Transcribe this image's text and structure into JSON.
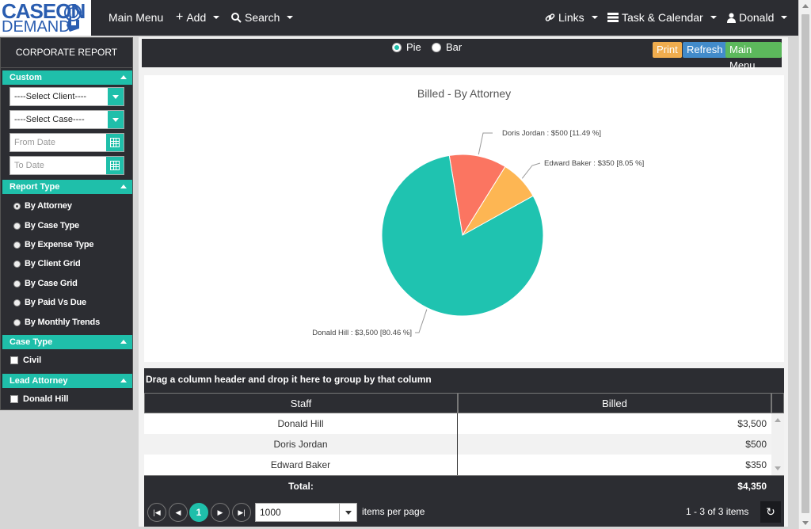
{
  "logo": {
    "line1": "CASEON",
    "line2": "DEMAND"
  },
  "nav": {
    "main_menu": "Main Menu",
    "add": "Add",
    "search": "Search",
    "links": "Links",
    "task_calendar": "Task & Calendar",
    "user": "Donald"
  },
  "sidebar": {
    "title": "CORPORATE REPORT",
    "custom": {
      "header": "Custom",
      "client_select": "----Select Client----",
      "case_select": "----Select Case----",
      "from_date_placeholder": "From Date",
      "to_date_placeholder": "To Date"
    },
    "report_type": {
      "header": "Report Type",
      "options": [
        {
          "label": "By Attorney",
          "selected": true
        },
        {
          "label": "By Case Type",
          "selected": false
        },
        {
          "label": "By Expense Type",
          "selected": false
        },
        {
          "label": "By Client Grid",
          "selected": false
        },
        {
          "label": "By Case Grid",
          "selected": false
        },
        {
          "label": "By Paid Vs Due",
          "selected": false
        },
        {
          "label": "By Monthly Trends",
          "selected": false
        }
      ]
    },
    "case_type": {
      "header": "Case Type",
      "items": [
        "Civil"
      ]
    },
    "lead_attorney": {
      "header": "Lead Attorney",
      "items": [
        "Donald Hill"
      ]
    }
  },
  "toolbar": {
    "pie_label": "Pie",
    "bar_label": "Bar",
    "selected_view": "Pie",
    "print": "Print",
    "refresh": "Refresh",
    "main_menu": "Main Menu",
    "colors": {
      "print": "#f0ad4e",
      "refresh": "#428bca",
      "main_menu": "#5cb85c"
    }
  },
  "chart_data": {
    "type": "pie",
    "title": "Billed - By Attorney",
    "slices": [
      {
        "name": "Donald Hill",
        "value": 3500,
        "label": "Donald Hill : $3,500 [80.46 %]",
        "color": "#1fc3b0"
      },
      {
        "name": "Doris Jordan",
        "value": 500,
        "label": "Doris Jordan : $500 [11.49 %]",
        "color": "#fb7561"
      },
      {
        "name": "Edward Baker",
        "value": 350,
        "label": "Edward Baker : $350 [8.05 %]",
        "color": "#fdb653"
      }
    ]
  },
  "grid": {
    "group_hint": "Drag a column header and drop it here to group by that column",
    "columns": [
      "Staff",
      "Billed"
    ],
    "rows": [
      {
        "staff": "Donald Hill",
        "billed": "$3,500"
      },
      {
        "staff": "Doris Jordan",
        "billed": "$500"
      },
      {
        "staff": "Edward Baker",
        "billed": "$350"
      }
    ],
    "total_label": "Total:",
    "total_value": "$4,350",
    "pager": {
      "current_page": "1",
      "page_size": "1000",
      "items_per_page": "items per page",
      "summary": "1 - 3 of 3 items"
    }
  }
}
